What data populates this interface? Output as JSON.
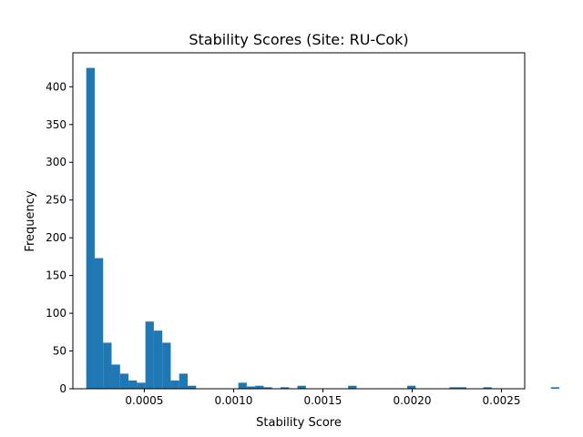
{
  "chart_data": {
    "type": "bar",
    "subtype": "histogram",
    "title": "Stability Scores (Site: RU-Cok)",
    "xlabel": "Stability Score",
    "ylabel": "Frequency",
    "xlim": [
      0.0001,
      0.00263
    ],
    "ylim": [
      0,
      445
    ],
    "bin_start": 0.000175,
    "bin_width": 4.73e-05,
    "x_ticks": [
      {
        "value": 0.0005,
        "label": "0.0005"
      },
      {
        "value": 0.001,
        "label": "0.0010"
      },
      {
        "value": 0.0015,
        "label": "0.0015"
      },
      {
        "value": 0.002,
        "label": "0.0020"
      },
      {
        "value": 0.0025,
        "label": "0.0025"
      }
    ],
    "y_ticks": [
      {
        "value": 0,
        "label": "0"
      },
      {
        "value": 50,
        "label": "50"
      },
      {
        "value": 100,
        "label": "100"
      },
      {
        "value": 150,
        "label": "150"
      },
      {
        "value": 200,
        "label": "200"
      },
      {
        "value": 250,
        "label": "250"
      },
      {
        "value": 300,
        "label": "300"
      },
      {
        "value": 350,
        "label": "350"
      },
      {
        "value": 400,
        "label": "400"
      }
    ],
    "values": [
      425,
      173,
      61,
      32,
      20,
      11,
      8,
      89,
      77,
      61,
      11,
      20,
      4,
      0,
      0,
      0,
      0,
      0,
      8,
      3,
      4,
      2,
      0,
      2,
      0,
      4,
      0,
      0,
      0,
      0,
      0,
      4,
      0,
      0,
      0,
      0,
      0,
      0,
      4,
      0,
      0,
      0,
      0,
      2,
      2,
      0,
      0,
      2,
      0,
      0,
      0,
      0,
      0,
      0,
      0,
      2
    ],
    "bar_color": "#1f77b4",
    "grid": false,
    "legend": "none"
  }
}
